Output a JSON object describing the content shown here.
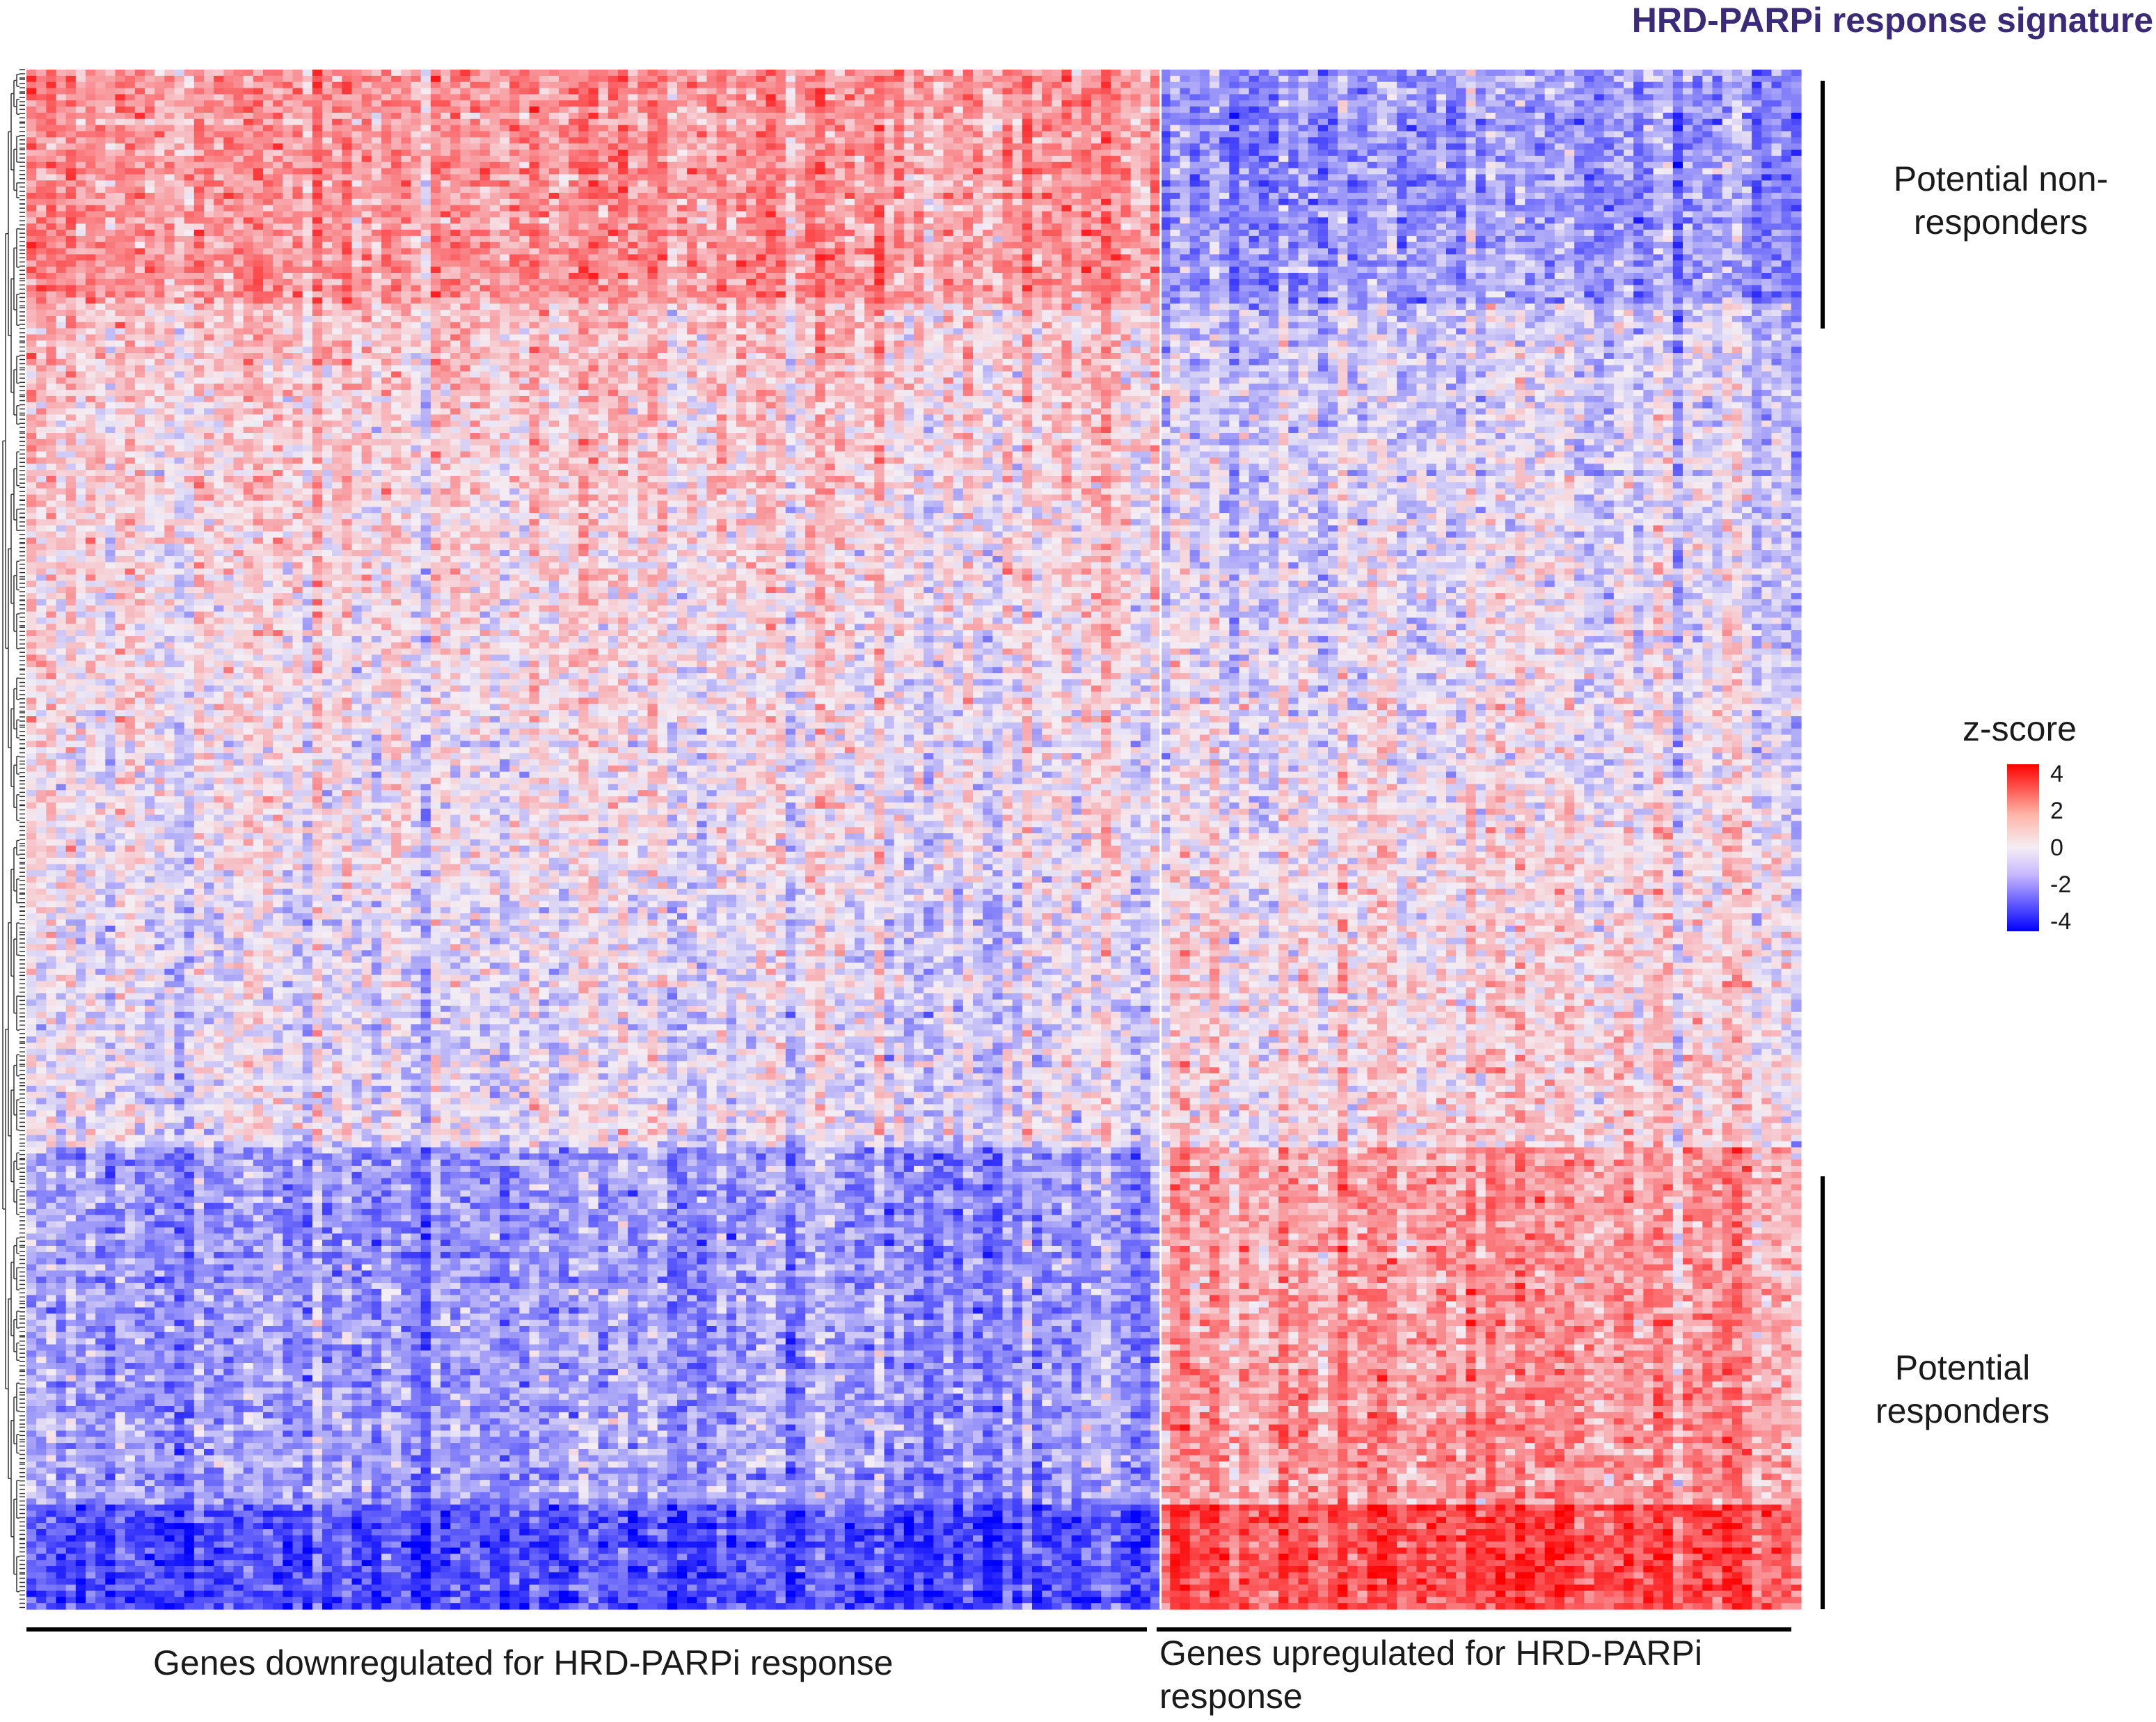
{
  "title": "HRD-PARPi response signature",
  "chart_data": {
    "type": "heatmap",
    "title": "HRD-PARPi response signature",
    "legend": {
      "title": "z-score",
      "ticks": [
        "4",
        "2",
        "0",
        "-2",
        "-4"
      ],
      "range": [
        -4,
        4
      ],
      "placement": "right"
    },
    "color_scale": {
      "low": "#0000ff",
      "mid": "#f4eef4",
      "high": "#ff0000"
    },
    "column_groups": [
      {
        "label": "Genes downregulated for HRD-PARPi response",
        "fraction": 0.64
      },
      {
        "label": "Genes upregulated for HRD-PARPi response",
        "fraction": 0.36
      }
    ],
    "row_groups": [
      {
        "label": "Potential non-responders"
      },
      {
        "label": "Potential responders"
      }
    ],
    "row_dendrogram": true,
    "grid": false
  }
}
